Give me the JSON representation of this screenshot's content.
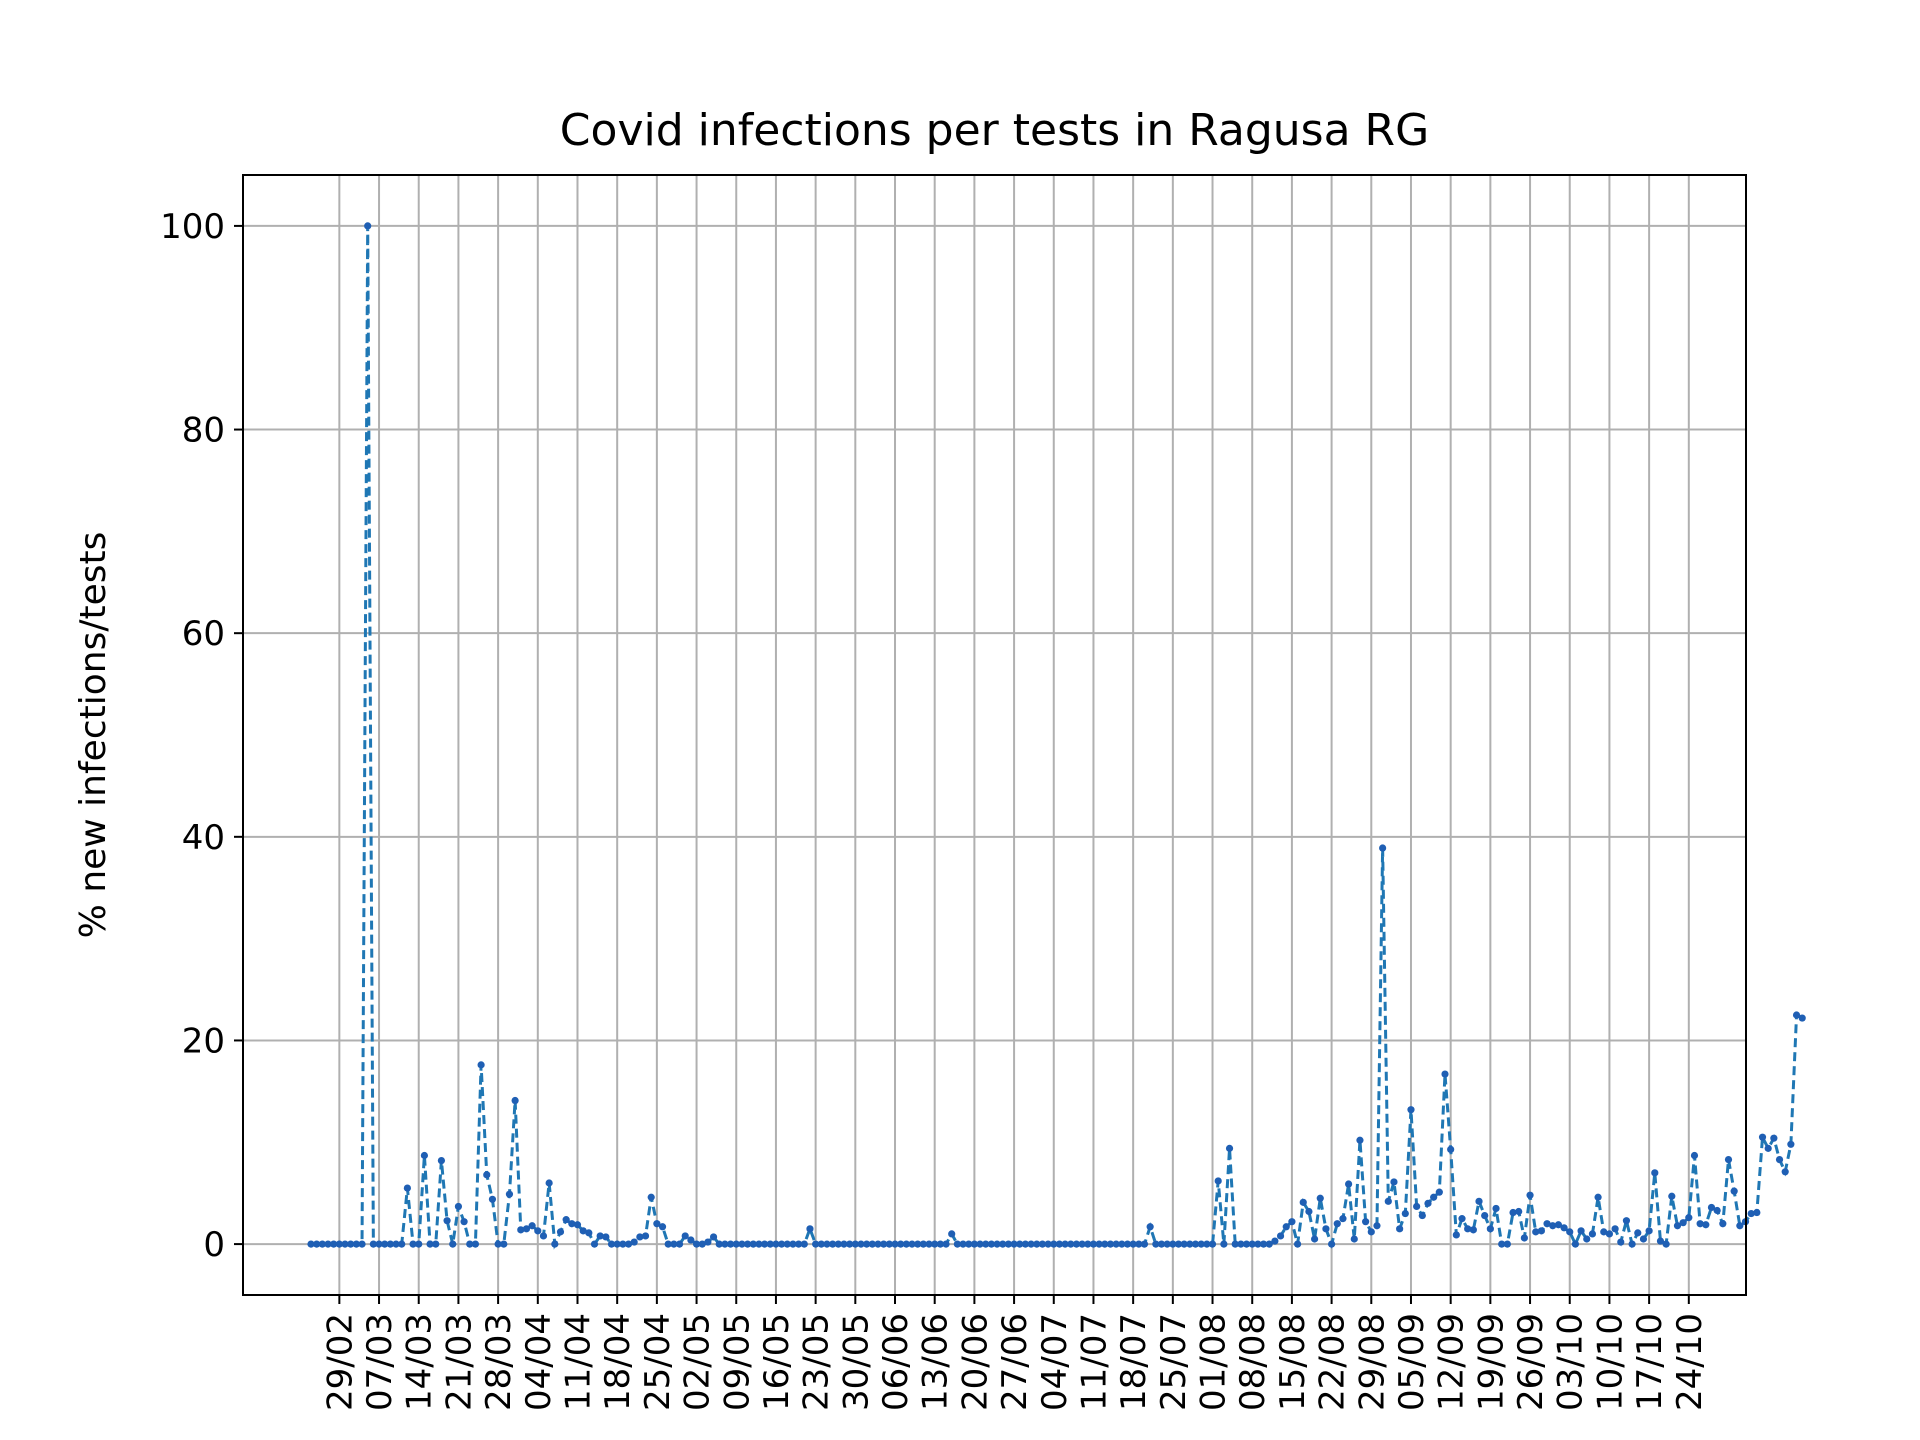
{
  "chart_data": {
    "type": "line",
    "title": "Covid infections per tests in Ragusa RG",
    "xlabel": "",
    "ylabel": "% new infections/tests",
    "ylim": [
      -5,
      105
    ],
    "yticks": [
      0,
      20,
      40,
      60,
      80,
      100
    ],
    "grid": true,
    "legend": "none",
    "line_style": "dashed",
    "marker": "dot",
    "colors": {
      "line": "#1f77b4",
      "marker": "#1f5fb4",
      "grid": "#b0b0b0"
    },
    "x_start": "24/02",
    "x_end": "25/10",
    "xticks": [
      "29/02",
      "07/03",
      "14/03",
      "21/03",
      "28/03",
      "04/04",
      "11/04",
      "18/04",
      "25/04",
      "02/05",
      "09/05",
      "16/05",
      "23/05",
      "30/05",
      "06/06",
      "13/06",
      "20/06",
      "27/06",
      "04/07",
      "11/07",
      "18/07",
      "25/07",
      "01/08",
      "08/08",
      "15/08",
      "22/08",
      "29/08",
      "05/09",
      "12/09",
      "19/09",
      "26/09",
      "03/10",
      "10/10",
      "17/10",
      "24/10"
    ],
    "series": [
      {
        "name": "",
        "values": [
          0,
          0,
          0,
          0,
          0,
          0,
          0,
          0,
          0,
          0,
          100,
          0,
          0,
          0,
          0,
          0,
          0,
          5.5,
          0,
          0,
          8.7,
          0,
          0,
          8.2,
          2.3,
          0,
          3.7,
          2.2,
          0,
          0,
          17.6,
          6.8,
          4.4,
          0,
          0,
          4.9,
          14.1,
          1.4,
          1.5,
          1.8,
          1.3,
          0.8,
          6.0,
          0,
          1.2,
          2.4,
          2.0,
          1.9,
          1.3,
          1.1,
          0,
          0.8,
          0.7,
          0,
          0,
          0,
          0,
          0.2,
          0.7,
          0.8,
          4.6,
          2.0,
          1.7,
          0,
          0,
          0,
          0.8,
          0.4,
          0,
          0,
          0.2,
          0.7,
          0,
          0,
          0,
          0,
          0,
          0,
          0,
          0,
          0,
          0,
          0,
          0,
          0,
          0,
          0,
          0,
          1.5,
          0,
          0,
          0,
          0,
          0,
          0,
          0,
          0,
          0,
          0,
          0,
          0,
          0,
          0,
          0,
          0,
          0,
          0,
          0,
          0,
          0,
          0,
          0,
          0,
          1.0,
          0,
          0,
          0,
          0,
          0,
          0,
          0,
          0,
          0,
          0,
          0,
          0,
          0,
          0,
          0,
          0,
          0,
          0,
          0,
          0,
          0,
          0,
          0,
          0,
          0,
          0,
          0,
          0,
          0,
          0,
          0,
          0,
          0,
          0,
          1.7,
          0,
          0,
          0,
          0,
          0,
          0,
          0,
          0,
          0,
          0,
          0,
          6.2,
          0,
          9.4,
          0,
          0,
          0,
          0,
          0,
          0,
          0,
          0.3,
          0.8,
          1.7,
          2.2,
          0,
          4.1,
          3.2,
          0.5,
          4.5,
          1.5,
          0,
          2.0,
          2.5,
          5.9,
          0.5,
          10.2,
          2.2,
          1.2,
          1.8,
          38.9,
          4.2,
          6.1,
          1.5,
          3.0,
          13.2,
          3.7,
          2.8,
          4.0,
          4.6,
          5.1,
          16.7,
          9.3,
          0.9,
          2.5,
          1.5,
          1.4,
          4.2,
          2.8,
          1.5,
          3.5,
          0,
          0,
          3.1,
          3.2,
          0.6,
          4.8,
          1.2,
          1.3,
          2.0,
          1.8,
          1.9,
          1.6,
          1.2,
          0,
          1.3,
          0.5,
          1.0,
          4.6,
          1.2,
          1.0,
          1.5,
          0.2,
          2.3,
          0,
          1.1,
          0.5,
          1.3,
          7.0,
          0.3,
          0,
          4.7,
          1.8,
          2.1,
          2.6,
          8.7,
          2.0,
          1.9,
          3.6,
          3.3,
          2.0,
          8.3,
          5.2,
          1.8,
          2.2,
          3.0,
          3.1,
          10.5,
          9.4,
          10.4,
          8.3,
          7.1,
          9.8,
          22.5,
          22.2
        ]
      }
    ]
  }
}
